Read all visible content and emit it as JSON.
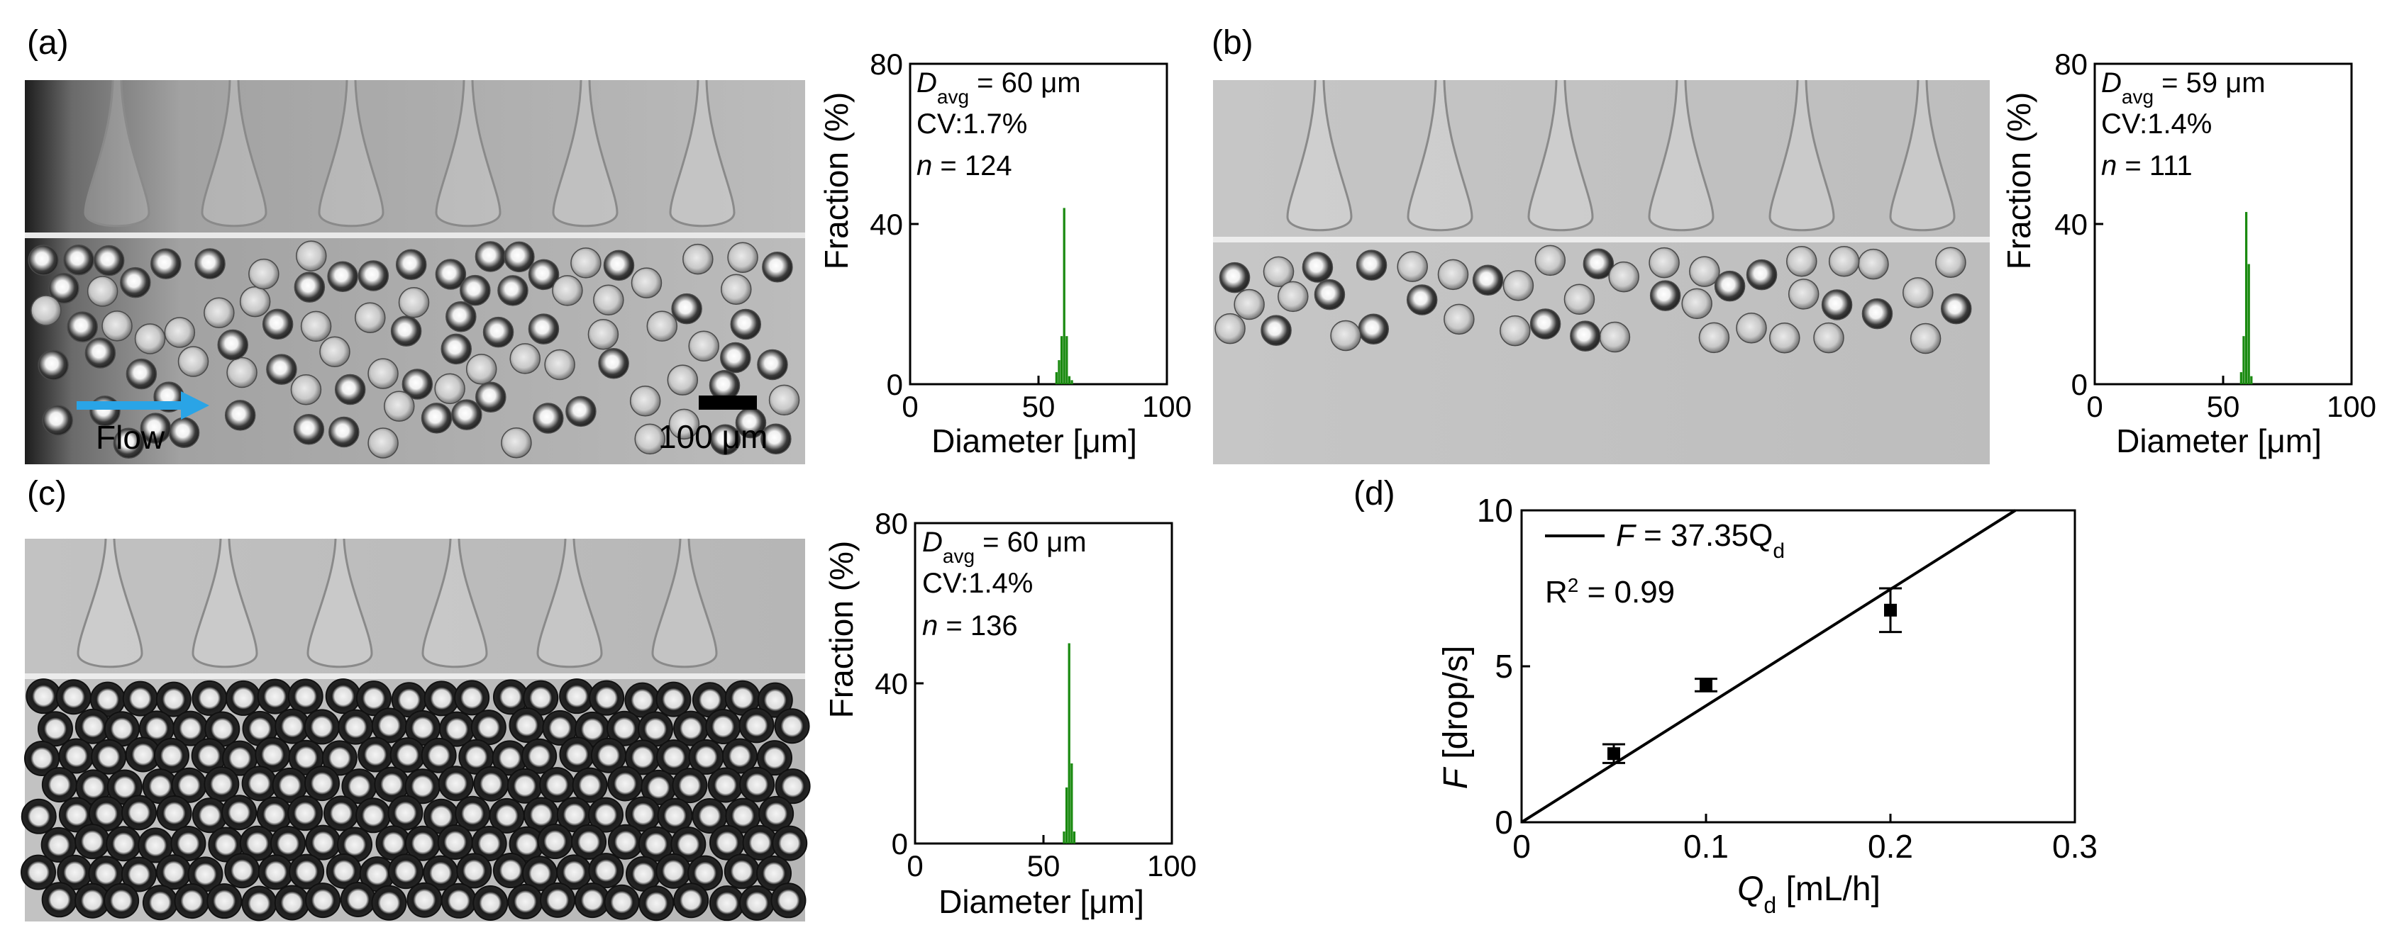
{
  "panel_labels": [
    "(a)",
    "(b)",
    "(c)",
    "(d)"
  ],
  "micrographs": {
    "a": {
      "flow_label": "Flow",
      "scale_label": "100 μm"
    }
  },
  "chart_data": [
    {
      "panel": "a",
      "type": "bar",
      "xlabel": "Diameter [μm]",
      "ylabel": "Fraction (%)",
      "xlim": [
        0,
        100
      ],
      "ylim": [
        0,
        80
      ],
      "xticks": [
        0,
        50,
        100
      ],
      "yticks": [
        0,
        40,
        80
      ],
      "stats": {
        "d_avg_symbol": "D",
        "d_avg_sub": "avg",
        "d_avg_value": " = 60 μm",
        "cv": "CV:1.7%",
        "n_symbol": "n",
        "n_value": " = 124"
      },
      "bars": {
        "x": [
          57,
          58,
          59,
          60,
          61,
          62,
          63
        ],
        "values": [
          3,
          6,
          12,
          44,
          12,
          2,
          1
        ]
      },
      "color": "#1a8a10"
    },
    {
      "panel": "b",
      "type": "bar",
      "xlabel": "Diameter [μm]",
      "ylabel": "Fraction (%)",
      "xlim": [
        0,
        100
      ],
      "ylim": [
        0,
        80
      ],
      "xticks": [
        0,
        50,
        100
      ],
      "yticks": [
        0,
        40,
        80
      ],
      "stats": {
        "d_avg_symbol": "D",
        "d_avg_sub": "avg",
        "d_avg_value": " = 59 μm",
        "cv": "CV:1.4%",
        "n_symbol": "n",
        "n_value": " = 111"
      },
      "bars": {
        "x": [
          57,
          58,
          59,
          60,
          61
        ],
        "values": [
          3,
          12,
          43,
          30,
          2
        ]
      },
      "color": "#1a8a10"
    },
    {
      "panel": "c",
      "type": "bar",
      "xlabel": "Diameter [μm]",
      "ylabel": "Fraction (%)",
      "xlim": [
        0,
        100
      ],
      "ylim": [
        0,
        80
      ],
      "xticks": [
        0,
        50,
        100
      ],
      "yticks": [
        0,
        40,
        80
      ],
      "stats": {
        "d_avg_symbol": "D",
        "d_avg_sub": "avg",
        "d_avg_value": " = 60 μm",
        "cv": "CV:1.4%",
        "n_symbol": "n",
        "n_value": " = 136"
      },
      "bars": {
        "x": [
          58,
          59,
          60,
          61,
          62
        ],
        "values": [
          3,
          14,
          50,
          20,
          3
        ]
      },
      "color": "#1a8a10"
    },
    {
      "panel": "d",
      "type": "scatter",
      "xlabel_symbol": "Q",
      "xlabel_sub": "d",
      "xlabel_unit": " [mL/h]",
      "ylabel_symbol": "F",
      "ylabel_unit": " [drop/s]",
      "xlim": [
        0,
        0.3
      ],
      "ylim": [
        0,
        10
      ],
      "xticks": [
        "0",
        "0.1",
        "0.2",
        "0.3"
      ],
      "yticks": [
        "0",
        "5",
        "10"
      ],
      "points": [
        {
          "x": 0.05,
          "y": 2.2,
          "err": 0.3
        },
        {
          "x": 0.1,
          "y": 4.4,
          "err": 0.2
        },
        {
          "x": 0.2,
          "y": 6.8,
          "err": 0.7
        }
      ],
      "fit": {
        "slope": 37.35,
        "intercept": 0
      },
      "legend": {
        "symbol": "F",
        "eq": " = 37.35Q",
        "sub": "d"
      },
      "r2": {
        "base": "R",
        "sup": "2",
        "value": " = 0.99"
      }
    }
  ]
}
